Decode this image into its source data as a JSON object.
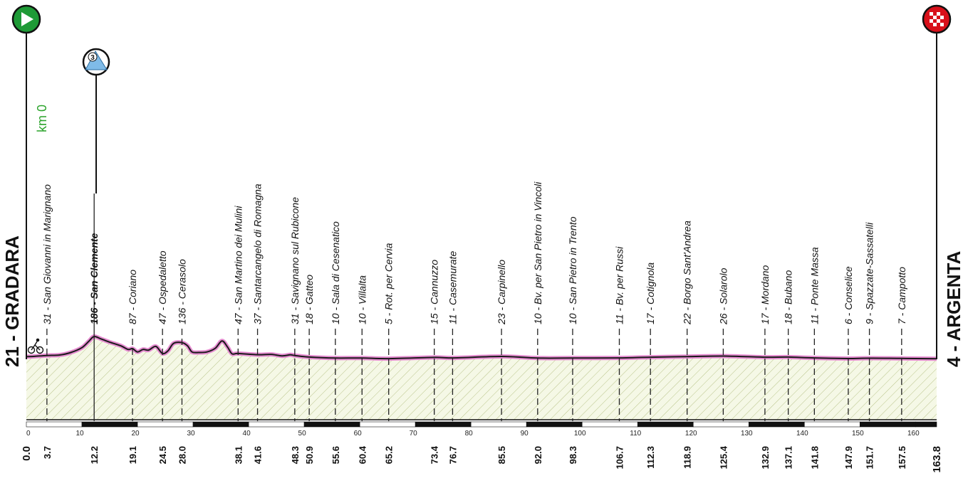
{
  "start": {
    "name": "21 - GRADARA",
    "km_marker": "km 0",
    "icon": "green-play-flag-icon"
  },
  "finish": {
    "name": "4 - ARGENTA",
    "icon": "checkered-flag-icon"
  },
  "climb": {
    "category": "3",
    "icon": "mountain-climb-icon"
  },
  "colors": {
    "profile_line": "#e58bd0",
    "fill": "#f5f8e6",
    "hatch": "#b9c48a",
    "start": "#1e9a36",
    "finish": "#d8101a",
    "climb": "#7fbbe8"
  },
  "chart_data": {
    "type": "area",
    "x_unit": "km",
    "x_range": [
      0,
      163.8
    ],
    "distance_scale_ticks": [
      "0",
      "10",
      "20",
      "30",
      "40",
      "50",
      "60",
      "70",
      "80",
      "90",
      "100",
      "110",
      "120",
      "130",
      "140",
      "150",
      "160"
    ],
    "profile": [
      [
        0,
        21
      ],
      [
        1.5,
        24
      ],
      [
        3.7,
        31
      ],
      [
        6,
        35
      ],
      [
        8,
        55
      ],
      [
        10,
        95
      ],
      [
        11.3,
        150
      ],
      [
        12.2,
        186
      ],
      [
        13.5,
        165
      ],
      [
        15,
        140
      ],
      [
        17,
        110
      ],
      [
        18.3,
        80
      ],
      [
        19.1,
        87
      ],
      [
        20,
        60
      ],
      [
        21,
        80
      ],
      [
        22,
        75
      ],
      [
        23.3,
        105
      ],
      [
        24.5,
        47
      ],
      [
        25.5,
        70
      ],
      [
        26.5,
        130
      ],
      [
        28,
        136
      ],
      [
        29,
        110
      ],
      [
        29.8,
        60
      ],
      [
        31,
        55
      ],
      [
        32.5,
        60
      ],
      [
        34,
        90
      ],
      [
        35.2,
        150
      ],
      [
        36.2,
        100
      ],
      [
        37,
        45
      ],
      [
        38.1,
        47
      ],
      [
        41.6,
        37
      ],
      [
        44,
        40
      ],
      [
        46,
        28
      ],
      [
        47.5,
        36
      ],
      [
        48.3,
        31
      ],
      [
        50.9,
        18
      ],
      [
        55.6,
        10
      ],
      [
        60.4,
        10
      ],
      [
        65.2,
        5
      ],
      [
        73.4,
        15
      ],
      [
        76.7,
        11
      ],
      [
        85.5,
        23
      ],
      [
        92,
        10
      ],
      [
        98.3,
        10
      ],
      [
        106.7,
        11
      ],
      [
        112.3,
        17
      ],
      [
        118.9,
        22
      ],
      [
        125.4,
        26
      ],
      [
        132.9,
        17
      ],
      [
        137.1,
        18
      ],
      [
        141.8,
        11
      ],
      [
        147.9,
        6
      ],
      [
        151.7,
        9
      ],
      [
        157.5,
        7
      ],
      [
        163.8,
        4
      ]
    ],
    "waypoints": [
      {
        "km": 0,
        "km_label": "0.0",
        "place": ""
      },
      {
        "km": 3.7,
        "km_label": "3.7",
        "place": "31 - San Giovanni in Marignano"
      },
      {
        "km": 12.2,
        "km_label": "12.2",
        "place": "186 - San Clemente",
        "strong": true
      },
      {
        "km": 19.1,
        "km_label": "19.1",
        "place": "87 - Coriano"
      },
      {
        "km": 24.5,
        "km_label": "24.5",
        "place": "47 - Ospedaletto"
      },
      {
        "km": 28.0,
        "km_label": "28.0",
        "place": "136 - Cerasolo"
      },
      {
        "km": 38.1,
        "km_label": "38.1",
        "place": "47 - San Martino dei Mulini"
      },
      {
        "km": 41.6,
        "km_label": "41.6",
        "place": "37 - Santarcangelo di Romagna"
      },
      {
        "km": 48.3,
        "km_label": "48.3",
        "place": "31 - Savignano sul Rubicone"
      },
      {
        "km": 50.9,
        "km_label": "50.9",
        "place": "18 - Gatteo"
      },
      {
        "km": 55.6,
        "km_label": "55.6",
        "place": "10 - Sala di Cesenatico"
      },
      {
        "km": 60.4,
        "km_label": "60.4",
        "place": "10 - Villalta"
      },
      {
        "km": 65.2,
        "km_label": "65.2",
        "place": "5 - Rot. per Cervia"
      },
      {
        "km": 73.4,
        "km_label": "73.4",
        "place": "15 - Cannuzzo"
      },
      {
        "km": 76.7,
        "km_label": "76.7",
        "place": "11 - Casemurate"
      },
      {
        "km": 85.5,
        "km_label": "85.5",
        "place": "23 - Carpinello"
      },
      {
        "km": 92.0,
        "km_label": "92.0",
        "place": "10 - Bv. per San Pietro in Vincoli"
      },
      {
        "km": 98.3,
        "km_label": "98.3",
        "place": "10 - San Pietro in Trento"
      },
      {
        "km": 106.7,
        "km_label": "106.7",
        "place": "11 - Bv. per Russi"
      },
      {
        "km": 112.3,
        "km_label": "112.3",
        "place": "17 - Cotignola"
      },
      {
        "km": 118.9,
        "km_label": "118.9",
        "place": "22 - Borgo Sant'Andrea"
      },
      {
        "km": 125.4,
        "km_label": "125.4",
        "place": "26 - Solarolo"
      },
      {
        "km": 132.9,
        "km_label": "132.9",
        "place": "17 - Mordano"
      },
      {
        "km": 137.1,
        "km_label": "137.1",
        "place": "18 - Bubano"
      },
      {
        "km": 141.8,
        "km_label": "141.8",
        "place": "11 - Ponte Massa"
      },
      {
        "km": 147.9,
        "km_label": "147.9",
        "place": "6 - Conselice"
      },
      {
        "km": 151.7,
        "km_label": "151.7",
        "place": "9 - Spazzate-Sassatelli"
      },
      {
        "km": 157.5,
        "km_label": "157.5",
        "place": "7 - Campotto"
      },
      {
        "km": 163.8,
        "km_label": "163.8",
        "place": ""
      }
    ]
  }
}
